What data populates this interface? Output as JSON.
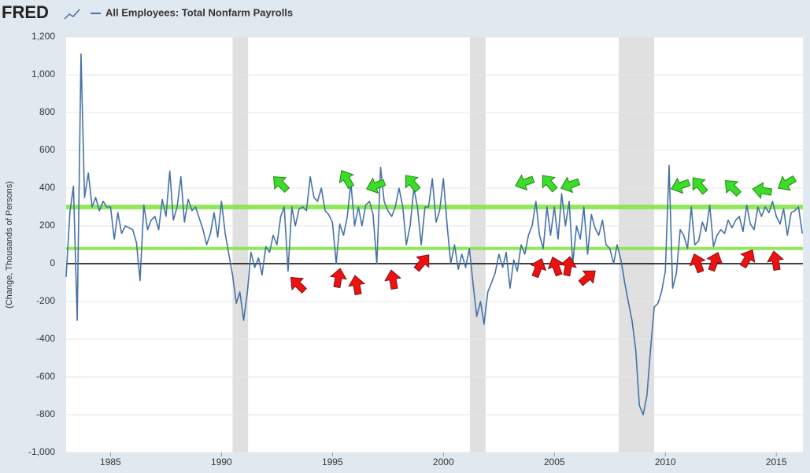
{
  "logo": "FRED",
  "chart_data": {
    "type": "line",
    "y_label": "(Change, Thousands of Persons)",
    "x": [
      1983,
      1983.17,
      1983.33,
      1983.5,
      1983.67,
      1983.83,
      1984,
      1984.17,
      1984.33,
      1984.5,
      1984.67,
      1984.83,
      1985,
      1985.17,
      1985.33,
      1985.5,
      1985.67,
      1985.83,
      1986,
      1986.17,
      1986.33,
      1986.5,
      1986.67,
      1986.83,
      1987,
      1987.17,
      1987.33,
      1987.5,
      1987.67,
      1987.83,
      1988,
      1988.17,
      1988.33,
      1988.5,
      1988.67,
      1988.83,
      1989,
      1989.17,
      1989.33,
      1989.5,
      1989.67,
      1989.83,
      1990,
      1990.17,
      1990.33,
      1990.5,
      1990.67,
      1990.83,
      1991,
      1991.17,
      1991.33,
      1991.5,
      1991.67,
      1991.83,
      1992,
      1992.17,
      1992.33,
      1992.5,
      1992.67,
      1992.83,
      1993,
      1993.17,
      1993.33,
      1993.5,
      1993.67,
      1993.83,
      1994,
      1994.17,
      1994.33,
      1994.5,
      1994.67,
      1994.83,
      1995,
      1995.17,
      1995.33,
      1995.5,
      1995.67,
      1995.83,
      1996,
      1996.17,
      1996.33,
      1996.5,
      1996.67,
      1996.83,
      1997,
      1997.17,
      1997.33,
      1997.5,
      1997.67,
      1997.83,
      1998,
      1998.17,
      1998.33,
      1998.5,
      1998.67,
      1998.83,
      1999,
      1999.17,
      1999.33,
      1999.5,
      1999.67,
      1999.83,
      2000,
      2000.17,
      2000.33,
      2000.5,
      2000.67,
      2000.83,
      2001,
      2001.17,
      2001.33,
      2001.5,
      2001.67,
      2001.83,
      2002,
      2002.17,
      2002.33,
      2002.5,
      2002.67,
      2002.83,
      2003,
      2003.17,
      2003.33,
      2003.5,
      2003.67,
      2003.83,
      2004,
      2004.17,
      2004.33,
      2004.5,
      2004.67,
      2004.83,
      2005,
      2005.17,
      2005.33,
      2005.5,
      2005.67,
      2005.83,
      2006,
      2006.17,
      2006.33,
      2006.5,
      2006.67,
      2006.83,
      2007,
      2007.17,
      2007.33,
      2007.5,
      2007.67,
      2007.83,
      2008,
      2008.17,
      2008.33,
      2008.5,
      2008.67,
      2008.83,
      2009,
      2009.17,
      2009.33,
      2009.5,
      2009.67,
      2009.83,
      2010,
      2010.17,
      2010.33,
      2010.5,
      2010.67,
      2010.83,
      2011,
      2011.17,
      2011.33,
      2011.5,
      2011.67,
      2011.83,
      2012,
      2012.17,
      2012.33,
      2012.5,
      2012.67,
      2012.83,
      2013,
      2013.17,
      2013.33,
      2013.5,
      2013.67,
      2013.83,
      2014,
      2014.17,
      2014.33,
      2014.5,
      2014.67,
      2014.83,
      2015,
      2015.17,
      2015.33,
      2015.5,
      2015.67,
      2015.83,
      2016,
      2016.17
    ],
    "series": [
      {
        "name": "All Employees: Total Nonfarm Payrolls",
        "color": "#4572a7",
        "values": [
          -70,
          270,
          410,
          -300,
          1110,
          350,
          480,
          300,
          350,
          280,
          330,
          300,
          300,
          130,
          270,
          160,
          200,
          190,
          180,
          110,
          -90,
          310,
          180,
          230,
          250,
          180,
          340,
          250,
          490,
          230,
          300,
          460,
          220,
          340,
          280,
          300,
          240,
          180,
          100,
          160,
          270,
          140,
          330,
          160,
          50,
          -60,
          -210,
          -150,
          -300,
          -150,
          60,
          -20,
          30,
          -60,
          90,
          60,
          150,
          100,
          250,
          300,
          -40,
          300,
          200,
          290,
          300,
          280,
          460,
          350,
          330,
          400,
          280,
          260,
          220,
          0,
          210,
          150,
          250,
          430,
          200,
          300,
          200,
          310,
          330,
          260,
          0,
          510,
          330,
          280,
          250,
          300,
          400,
          300,
          100,
          200,
          400,
          300,
          100,
          300,
          300,
          450,
          220,
          280,
          450,
          200,
          0,
          100,
          -30,
          50,
          -20,
          80,
          -100,
          -280,
          -200,
          -320,
          -150,
          -100,
          -50,
          50,
          -20,
          60,
          -130,
          20,
          -40,
          100,
          50,
          150,
          200,
          330,
          150,
          80,
          300,
          150,
          300,
          130,
          370,
          200,
          330,
          0,
          200,
          130,
          300,
          50,
          260,
          190,
          150,
          230,
          100,
          80,
          0,
          100,
          20,
          -100,
          -200,
          -300,
          -460,
          -750,
          -800,
          -700,
          -460,
          -230,
          -210,
          -150,
          -40,
          520,
          -130,
          -50,
          180,
          150,
          80,
          300,
          100,
          120,
          220,
          170,
          310,
          90,
          150,
          180,
          160,
          230,
          190,
          230,
          250,
          170,
          310,
          210,
          180,
          300,
          250,
          300,
          270,
          330,
          250,
          210,
          290,
          150,
          270,
          280,
          300,
          160
        ]
      }
    ],
    "recessions": [
      [
        1990.5,
        1991.2
      ],
      [
        2001.2,
        2001.9
      ],
      [
        2007.9,
        2009.5
      ]
    ],
    "reference_lines": [
      {
        "value": 300,
        "color": "#86e64a"
      },
      {
        "value": 80,
        "color": "#86e64a"
      }
    ],
    "xlim": [
      1983,
      2016.2
    ],
    "xticks": [
      1985,
      1990,
      1995,
      2000,
      2005,
      2010,
      2015
    ],
    "ylim": [
      -1000,
      1200
    ],
    "yticks": [
      {
        "value": -1000,
        "label": "-1,000"
      },
      -800,
      -600,
      -400,
      -200,
      0,
      200,
      400,
      600,
      800,
      {
        "value": 1000,
        "label": "1,000"
      },
      {
        "value": 1200,
        "label": "1,200"
      }
    ],
    "grid": true
  }
}
